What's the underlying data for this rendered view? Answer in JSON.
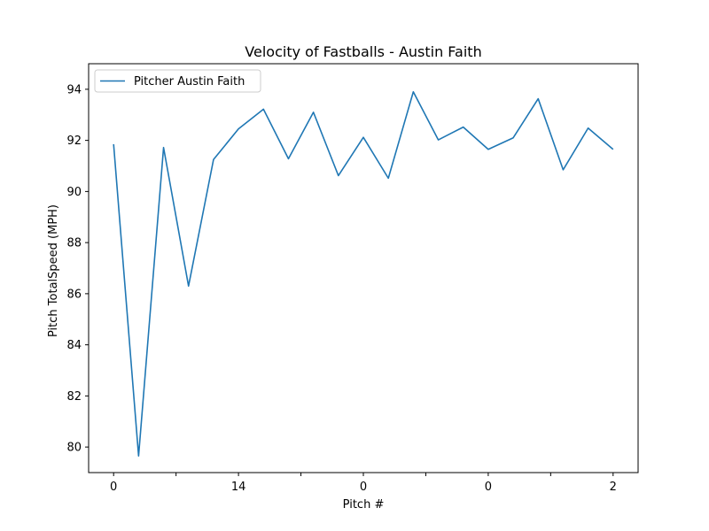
{
  "chart_data": {
    "type": "line",
    "title": "Velocity of Fastballs - Austin Faith",
    "xlabel": "Pitch #",
    "ylabel": "Pitch TotalSpeed (MPH)",
    "x_tick_labels": [
      "0",
      "",
      "14",
      "",
      "0",
      "",
      "0",
      "",
      "2"
    ],
    "y_ticks": [
      80,
      82,
      84,
      86,
      88,
      90,
      92,
      94
    ],
    "ylim": [
      79.0,
      95.0
    ],
    "legend_position": "upper-left",
    "series": [
      {
        "name": "Pitcher Austin Faith",
        "color": "#1f77b4",
        "values": [
          91.85,
          79.65,
          91.72,
          86.3,
          91.25,
          92.45,
          93.22,
          91.28,
          93.1,
          90.62,
          92.12,
          90.52,
          93.9,
          92.02,
          92.52,
          91.65,
          92.1,
          93.63,
          90.85,
          92.48,
          91.65
        ]
      }
    ]
  }
}
